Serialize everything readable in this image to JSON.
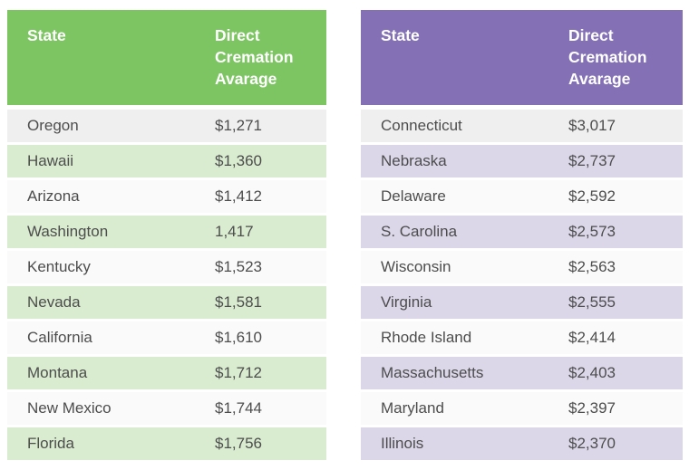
{
  "palette": {
    "green_header_bg": "#7dc462",
    "purple_header_bg": "#8471b5",
    "green_stripe_bg": "#d9ecd0",
    "purple_stripe_bg": "#dcd6e9",
    "first_row_bg": "#efefef",
    "plain_row_bg": "#fafafa",
    "header_text": "#ffffff",
    "body_text": "#4d4d4d",
    "page_bg": "#ffffff"
  },
  "chart_data": [
    {
      "type": "table",
      "theme": "green",
      "columns": [
        "State",
        "Direct Cremation Avarage"
      ],
      "rows": [
        [
          "Oregon",
          "$1,271"
        ],
        [
          "Hawaii",
          "$1,360"
        ],
        [
          "Arizona",
          "$1,412"
        ],
        [
          "Washington",
          "1,417"
        ],
        [
          "Kentucky",
          "$1,523"
        ],
        [
          "Nevada",
          "$1,581"
        ],
        [
          "California",
          "$1,610"
        ],
        [
          "Montana",
          "$1,712"
        ],
        [
          "New Mexico",
          "$1,744"
        ],
        [
          "Florida",
          "$1,756"
        ]
      ]
    },
    {
      "type": "table",
      "theme": "purple",
      "columns": [
        "State",
        "Direct Cremation Avarage"
      ],
      "rows": [
        [
          "Connecticut",
          "$3,017"
        ],
        [
          "Nebraska",
          "$2,737"
        ],
        [
          "Delaware",
          "$2,592"
        ],
        [
          "S. Carolina",
          "$2,573"
        ],
        [
          "Wisconsin",
          "$2,563"
        ],
        [
          "Virginia",
          "$2,555"
        ],
        [
          "Rhode Island",
          "$2,414"
        ],
        [
          "Massachusetts",
          "$2,403"
        ],
        [
          "Maryland",
          "$2,397"
        ],
        [
          "Illinois",
          "$2,370"
        ]
      ]
    }
  ]
}
